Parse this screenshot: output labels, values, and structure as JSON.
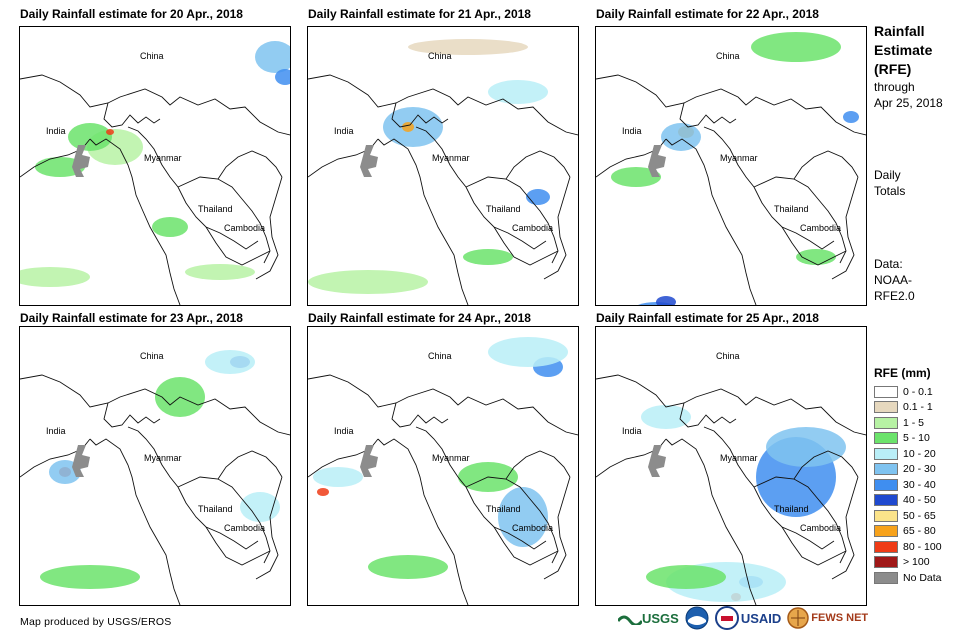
{
  "panels": [
    {
      "title": "Daily Rainfall estimate for 20 Apr., 2018",
      "labels": {
        "china": "China",
        "india": "India",
        "myanmar": "Myanmar",
        "thailand": "Thailand",
        "cambodia": "Cambodia"
      }
    },
    {
      "title": "Daily Rainfall estimate for 21 Apr., 2018",
      "labels": {
        "china": "China",
        "india": "India",
        "myanmar": "Myanmar",
        "thailand": "Thailand",
        "cambodia": "Cambodia"
      }
    },
    {
      "title": "Daily Rainfall estimate for 22 Apr., 2018",
      "labels": {
        "china": "China",
        "india": "India",
        "myanmar": "Myanmar",
        "thailand": "Thailand",
        "cambodia": "Cambodia"
      }
    },
    {
      "title": "Daily Rainfall estimate for 23 Apr., 2018",
      "labels": {
        "china": "China",
        "india": "India",
        "myanmar": "Myanmar",
        "thailand": "Thailand",
        "cambodia": "Cambodia"
      }
    },
    {
      "title": "Daily Rainfall estimate for 24 Apr., 2018",
      "labels": {
        "china": "China",
        "india": "India",
        "myanmar": "Myanmar",
        "thailand": "Thailand",
        "cambodia": "Cambodia"
      }
    },
    {
      "title": "Daily Rainfall estimate for 25 Apr., 2018",
      "labels": {
        "china": "China",
        "india": "India",
        "myanmar": "Myanmar",
        "thailand": "Thailand",
        "cambodia": "Cambodia"
      }
    }
  ],
  "side": {
    "title_lines": [
      "Rainfall",
      "Estimate",
      "(RFE)"
    ],
    "through_lines": [
      "through",
      "Apr 25, 2018"
    ],
    "period_lines": [
      "Daily",
      "Totals"
    ],
    "source_lines": [
      "Data:",
      "NOAA-",
      "RFE2.0"
    ]
  },
  "legend": {
    "title": "RFE (mm)",
    "items": [
      {
        "label": "0 - 0.1",
        "color": "#ffffff"
      },
      {
        "label": "0.1 - 1",
        "color": "#e6d8be"
      },
      {
        "label": "1 - 5",
        "color": "#b7f2a4"
      },
      {
        "label": "5 - 10",
        "color": "#6be36b"
      },
      {
        "label": "10 - 20",
        "color": "#b9eef7"
      },
      {
        "label": "20 - 30",
        "color": "#7fc3f0"
      },
      {
        "label": "30 - 40",
        "color": "#3f8ef0"
      },
      {
        "label": "40 - 50",
        "color": "#1f49cf"
      },
      {
        "label": "50 - 65",
        "color": "#fbe38a"
      },
      {
        "label": "65 - 80",
        "color": "#f7a21b"
      },
      {
        "label": "80 - 100",
        "color": "#ef3b16"
      },
      {
        "label": "> 100",
        "color": "#a01818"
      },
      {
        "label": "No Data",
        "color": "#8c8c8c"
      }
    ]
  },
  "footer": "Map produced by USGS/EROS",
  "logos": [
    "USGS",
    "NOAA",
    "USAID",
    "FEWS NET"
  ],
  "rain": [
    [
      [
        95,
        120,
        2,
        28,
        18
      ],
      [
        70,
        110,
        3,
        22,
        14
      ],
      [
        255,
        30,
        5,
        20,
        16
      ],
      [
        265,
        50,
        6,
        10,
        8
      ],
      [
        40,
        140,
        3,
        25,
        10
      ],
      [
        150,
        200,
        3,
        18,
        10
      ],
      [
        90,
        105,
        10,
        4,
        3
      ],
      [
        200,
        245,
        2,
        35,
        8
      ],
      [
        30,
        250,
        2,
        40,
        10
      ]
    ],
    [
      [
        105,
        100,
        5,
        30,
        20
      ],
      [
        100,
        100,
        9,
        6,
        5
      ],
      [
        230,
        170,
        6,
        12,
        8
      ],
      [
        180,
        230,
        3,
        25,
        8
      ],
      [
        60,
        255,
        2,
        60,
        12
      ],
      [
        160,
        20,
        1,
        60,
        8
      ],
      [
        210,
        65,
        4,
        30,
        12
      ]
    ],
    [
      [
        90,
        105,
        9,
        8,
        6
      ],
      [
        85,
        110,
        5,
        20,
        14
      ],
      [
        60,
        285,
        6,
        25,
        10
      ],
      [
        70,
        275,
        7,
        10,
        6
      ],
      [
        220,
        230,
        3,
        20,
        8
      ],
      [
        200,
        20,
        3,
        45,
        15
      ],
      [
        255,
        90,
        6,
        8,
        6
      ],
      [
        40,
        150,
        3,
        25,
        10
      ]
    ],
    [
      [
        45,
        145,
        10,
        6,
        5
      ],
      [
        45,
        145,
        5,
        16,
        12
      ],
      [
        220,
        35,
        7,
        10,
        6
      ],
      [
        210,
        35,
        4,
        25,
        12
      ],
      [
        160,
        70,
        3,
        25,
        20
      ],
      [
        70,
        250,
        3,
        50,
        12
      ],
      [
        240,
        180,
        4,
        20,
        15
      ]
    ],
    [
      [
        15,
        165,
        10,
        6,
        4
      ],
      [
        30,
        150,
        4,
        25,
        10
      ],
      [
        240,
        40,
        6,
        15,
        10
      ],
      [
        220,
        25,
        4,
        40,
        15
      ],
      [
        215,
        190,
        5,
        25,
        30
      ],
      [
        100,
        240,
        3,
        40,
        12
      ],
      [
        180,
        150,
        3,
        30,
        15
      ]
    ],
    [
      [
        155,
        255,
        6,
        12,
        6
      ],
      [
        140,
        270,
        10,
        5,
        4
      ],
      [
        130,
        255,
        4,
        60,
        20
      ],
      [
        90,
        250,
        3,
        40,
        12
      ],
      [
        200,
        150,
        6,
        40,
        40
      ],
      [
        210,
        120,
        5,
        40,
        20
      ],
      [
        70,
        90,
        4,
        25,
        12
      ]
    ]
  ]
}
